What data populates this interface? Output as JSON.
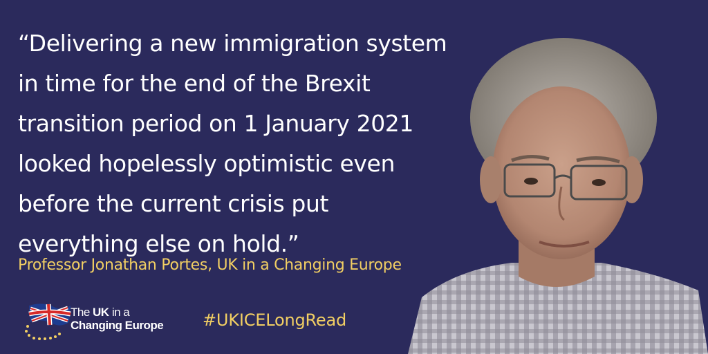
{
  "quote": {
    "lines": [
      "“Delivering a new immigration system",
      "in time for the end of the Brexit",
      "transition period on 1 January 2021",
      "looked hopelessly optimistic even",
      "before the current crisis put",
      "everything else on hold.”"
    ]
  },
  "attribution": "Professor Jonathan Portes, UK in a Changing Europe",
  "hashtag": "#UKICELongRead",
  "logo": {
    "line1_prefix": "The ",
    "line1_bold": "UK",
    "line1_suffix": " in a",
    "line2": "Changing Europe"
  },
  "colors": {
    "background": "#2b2a5c",
    "quote_text": "#ffffff",
    "accent_yellow": "#f2cf63"
  },
  "icons": [
    "union-flag-logo-icon",
    "eu-stars-icon"
  ]
}
